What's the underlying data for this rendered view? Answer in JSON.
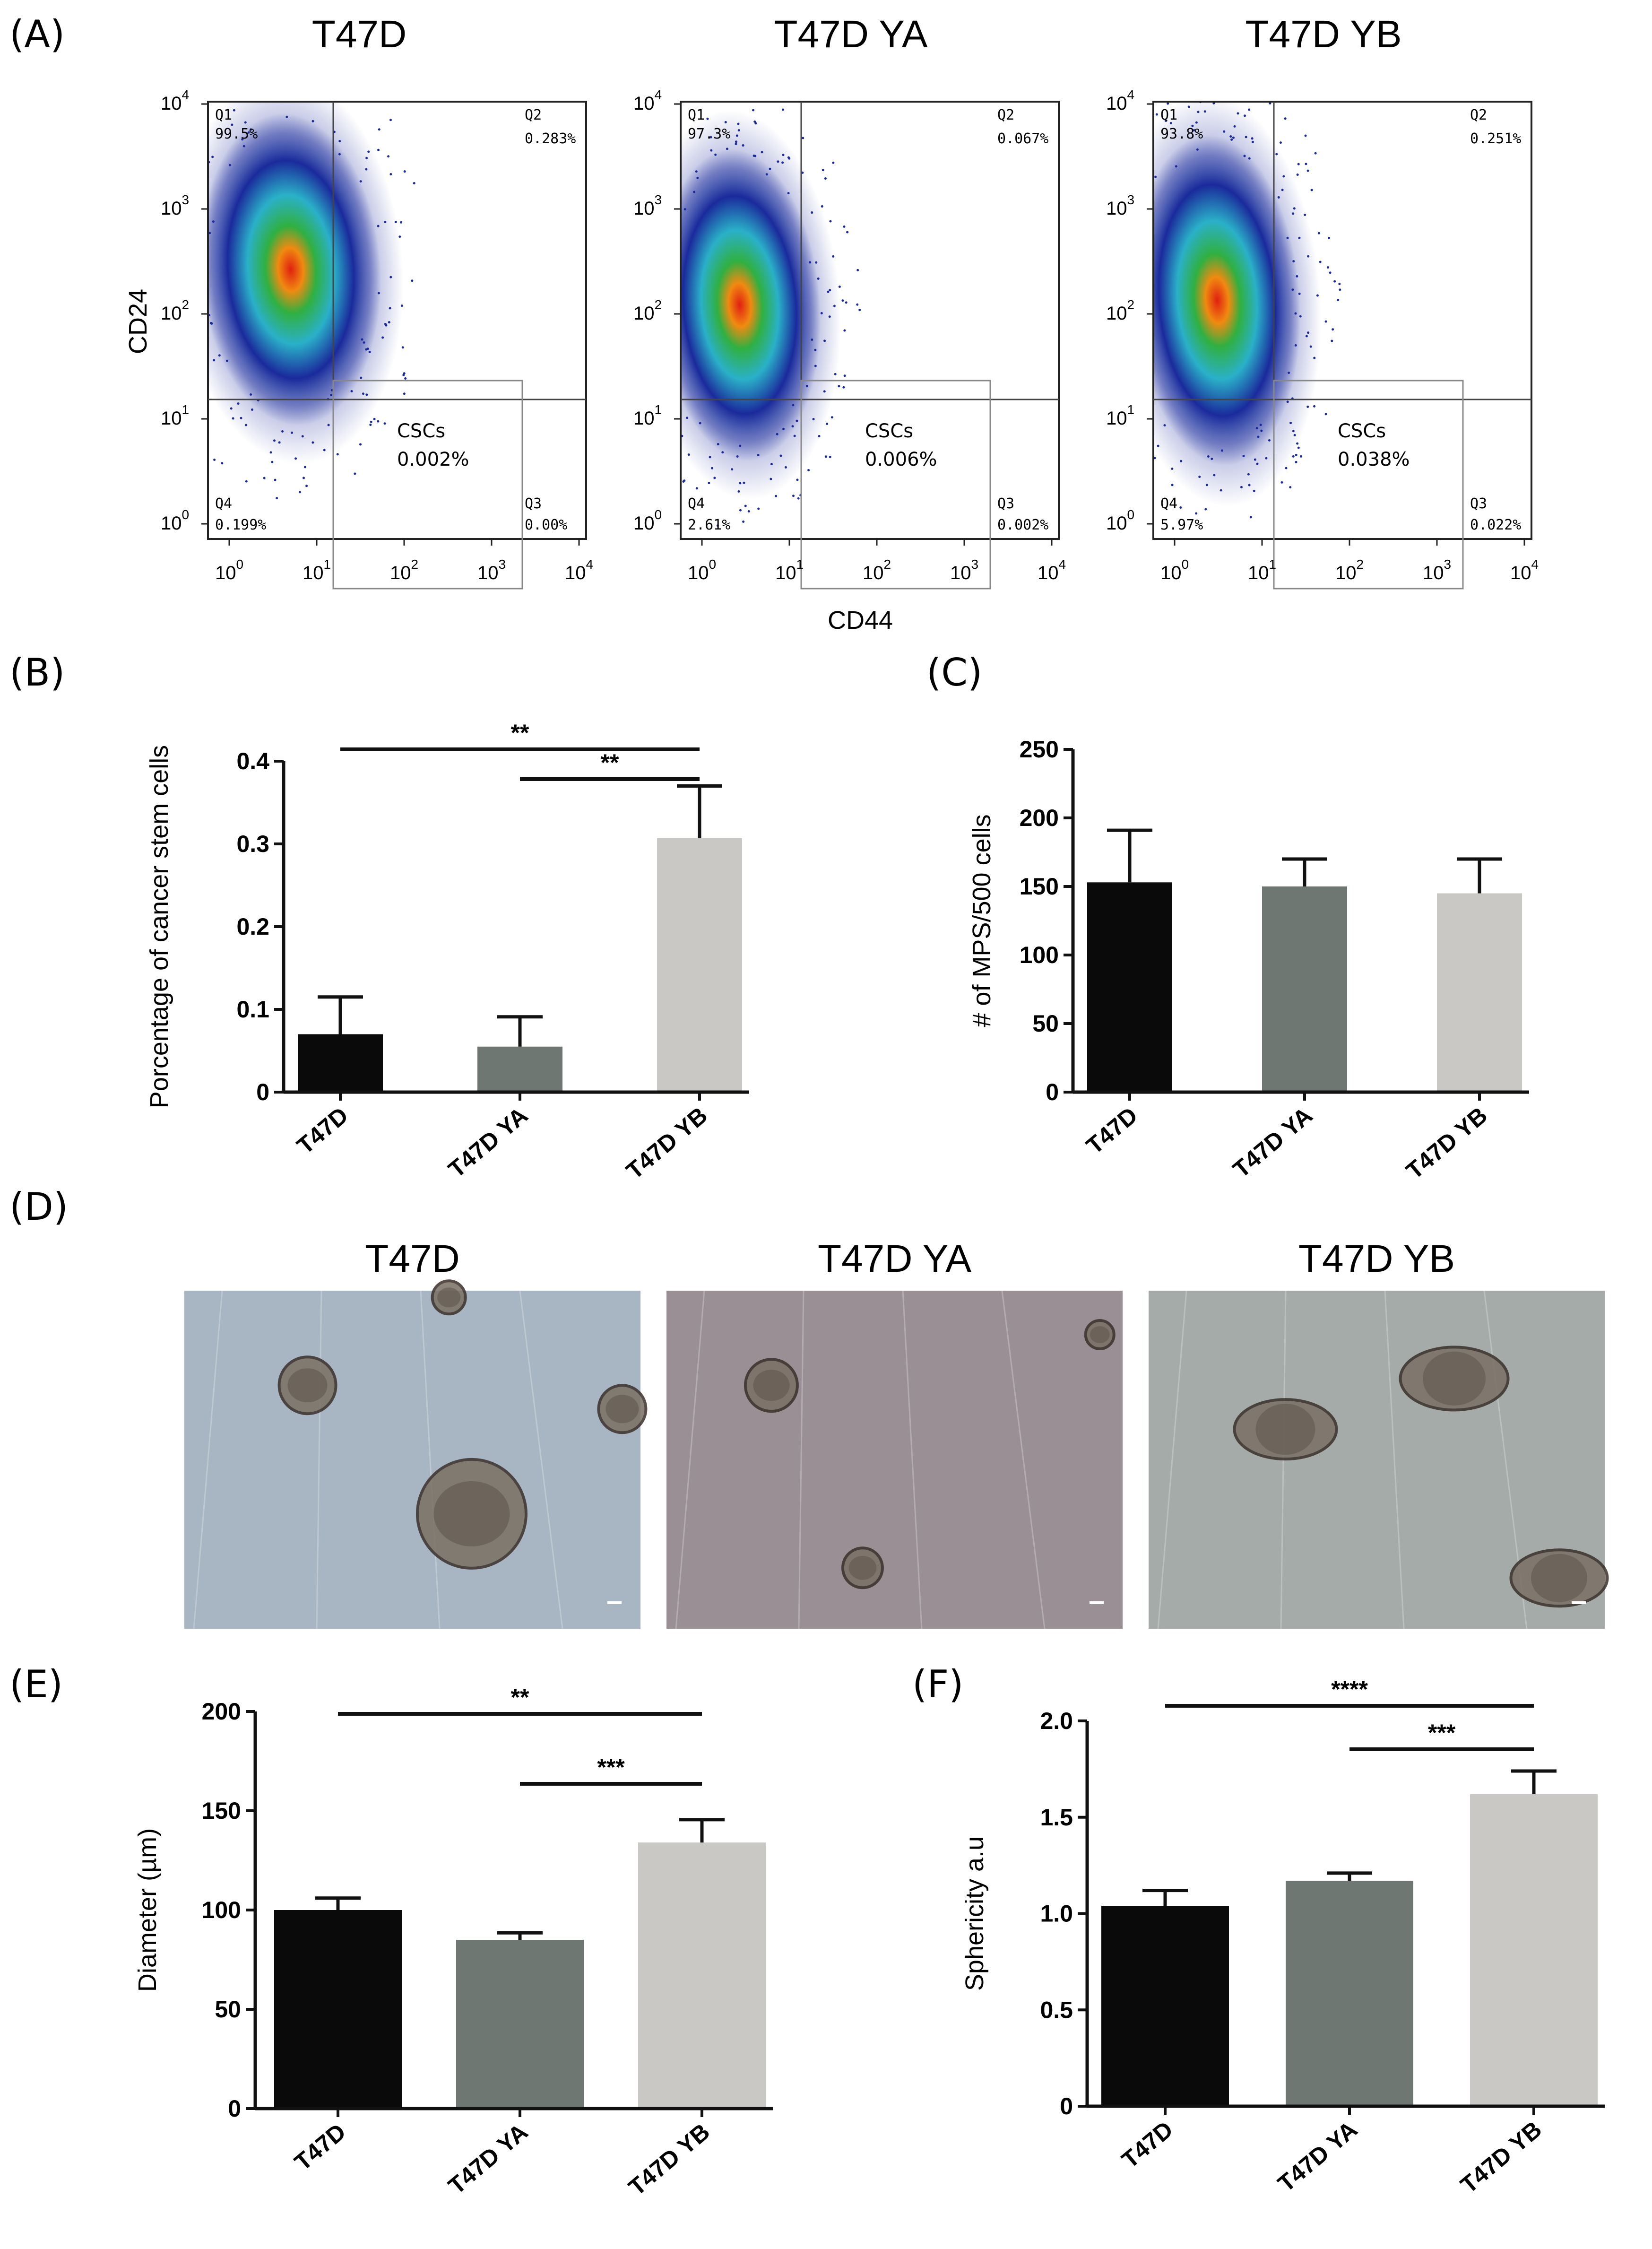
{
  "panels": {
    "A": "(A)",
    "B": "(B)",
    "C": "(C)",
    "D": "(D)",
    "E": "(E)",
    "F": "(F)"
  },
  "flow": {
    "y_label": "CD24",
    "x_label": "CD44",
    "tick_base": "10",
    "tick_exponents": [
      "0",
      "1",
      "2",
      "3",
      "4"
    ],
    "plots": [
      {
        "title": "T47D",
        "q1": "Q1",
        "q1_val": "99.5%",
        "q2": "Q2",
        "q2_val": "0.283%",
        "q3": "Q3",
        "q3_val": "0.00%",
        "q4": "Q4",
        "q4_val": "0.199%",
        "csc_label": "CSCs",
        "csc_val": "0.002%"
      },
      {
        "title": "T47D YA",
        "q1": "Q1",
        "q1_val": "97.3%",
        "q2": "Q2",
        "q2_val": "0.067%",
        "q3": "Q3",
        "q3_val": "0.002%",
        "q4": "Q4",
        "q4_val": "2.61%",
        "csc_label": "CSCs",
        "csc_val": "0.006%"
      },
      {
        "title": "T47D YB",
        "q1": "Q1",
        "q1_val": "93.8%",
        "q2": "Q2",
        "q2_val": "0.251%",
        "q3": "Q3",
        "q3_val": "0.022%",
        "q4": "Q4",
        "q4_val": "5.97%",
        "csc_label": "CSCs",
        "csc_val": "0.038%"
      }
    ]
  },
  "colors": {
    "t47d": "#0a0a0a",
    "t47d_ya": "#6f7772",
    "t47d_yb": "#c9c8c4",
    "flow_outer": "#1a2a9c",
    "flow_mid": "#2ab0c8",
    "flow_core": "#30b040",
    "flow_hot": "#e02010"
  },
  "micrographs": {
    "titles": [
      "T47D",
      "T47D YA",
      "T47D YB"
    ],
    "tints": [
      "#a7b6c2",
      "#9a8f95",
      "#a5aba8"
    ]
  },
  "chart_data": [
    {
      "id": "B",
      "type": "bar",
      "categories": [
        "T47D",
        "T47D YA",
        "T47D YB"
      ],
      "values": [
        0.07,
        0.055,
        0.307
      ],
      "errors": [
        0.045,
        0.036,
        0.063
      ],
      "ylabel": "Porcentage of cancer stem cells",
      "ylim": [
        0,
        0.4
      ],
      "yticks": [
        0,
        0.1,
        0.2,
        0.3,
        0.4
      ],
      "ytick_labels": [
        "0",
        "0.1",
        "0.2",
        "0.3",
        "0.4"
      ],
      "significance": [
        {
          "from": 0,
          "to": 2,
          "label": "**"
        },
        {
          "from": 1,
          "to": 2,
          "label": "**"
        }
      ]
    },
    {
      "id": "C",
      "type": "bar",
      "categories": [
        "T47D",
        "T47D YA",
        "T47D YB"
      ],
      "values": [
        153,
        150,
        145
      ],
      "errors": [
        38,
        20,
        25
      ],
      "ylabel": "# of MPS/500 cells",
      "ylim": [
        0,
        250
      ],
      "yticks": [
        0,
        50,
        100,
        150,
        200,
        250
      ],
      "ytick_labels": [
        "0",
        "50",
        "100",
        "150",
        "200",
        "250"
      ],
      "significance": []
    },
    {
      "id": "E",
      "type": "bar",
      "categories": [
        "T47D",
        "T47D YA",
        "T47D YB"
      ],
      "values": [
        100,
        85,
        134
      ],
      "errors": [
        6,
        3.5,
        11.5
      ],
      "ylabel": "Diameter (µm)",
      "ylim": [
        0,
        200
      ],
      "yticks": [
        0,
        50,
        100,
        150,
        200
      ],
      "ytick_labels": [
        "0",
        "50",
        "100",
        "150",
        "200"
      ],
      "significance": [
        {
          "from": 0,
          "to": 2,
          "label": "**"
        },
        {
          "from": 1,
          "to": 2,
          "label": "***"
        }
      ]
    },
    {
      "id": "F",
      "type": "bar",
      "categories": [
        "T47D",
        "T47D YA",
        "T47D YB"
      ],
      "values": [
        1.04,
        1.17,
        1.62
      ],
      "errors": [
        0.08,
        0.04,
        0.12
      ],
      "ylabel": "Sphericity a.u",
      "ylim": [
        0,
        2.0
      ],
      "yticks": [
        0,
        0.5,
        1.0,
        1.5,
        2.0
      ],
      "ytick_labels": [
        "0",
        "0.5",
        "1.0",
        "1.5",
        "2.0"
      ],
      "significance": [
        {
          "from": 0,
          "to": 2,
          "label": "****"
        },
        {
          "from": 1,
          "to": 2,
          "label": "***"
        }
      ]
    }
  ]
}
